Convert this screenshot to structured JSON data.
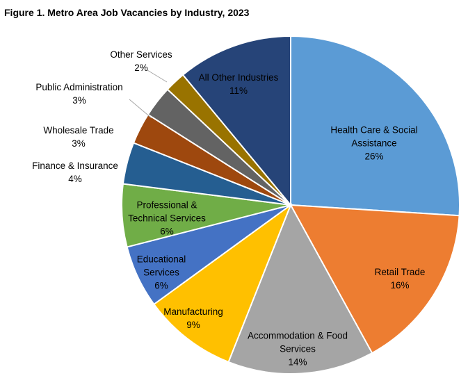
{
  "chart_data": {
    "type": "pie",
    "title": "Figure 1. Metro Area Job Vacancies by Industry, 2023",
    "start": "12 o'clock, clockwise",
    "slices": [
      {
        "label": "Health Care & Social Assistance",
        "lines": [
          "Health Care & Social",
          "Assistance"
        ],
        "value": 26,
        "pct": "26%",
        "color": "#5B9BD5"
      },
      {
        "label": "Retail Trade",
        "lines": [
          "Retail Trade"
        ],
        "value": 16,
        "pct": "16%",
        "color": "#ED7D31"
      },
      {
        "label": "Accommodation & Food Services",
        "lines": [
          "Accommodation & Food",
          "Services"
        ],
        "value": 14,
        "pct": "14%",
        "color": "#A5A5A5"
      },
      {
        "label": "Manufacturing",
        "lines": [
          "Manufacturing"
        ],
        "value": 9,
        "pct": "9%",
        "color": "#FFC000"
      },
      {
        "label": "Educational Services",
        "lines": [
          "Educational",
          "Services"
        ],
        "value": 6,
        "pct": "6%",
        "color": "#4472C4"
      },
      {
        "label": "Professional & Technical Services",
        "lines": [
          "Professional &",
          "Technical Services"
        ],
        "value": 6,
        "pct": "6%",
        "color": "#70AD47"
      },
      {
        "label": "Finance & Insurance",
        "lines": [
          "Finance & Insurance"
        ],
        "value": 4,
        "pct": "4%",
        "color": "#255E91"
      },
      {
        "label": "Wholesale Trade",
        "lines": [
          "Wholesale Trade"
        ],
        "value": 3,
        "pct": "3%",
        "color": "#9E480E"
      },
      {
        "label": "Public Administration",
        "lines": [
          "Public Administration"
        ],
        "value": 3,
        "pct": "3%",
        "color": "#636363"
      },
      {
        "label": "Other Services",
        "lines": [
          "Other Services"
        ],
        "value": 2,
        "pct": "2%",
        "color": "#997300"
      },
      {
        "label": "All Other Industries",
        "lines": [
          "All Other Industries"
        ],
        "value": 11,
        "pct": "11%",
        "color": "#264478"
      }
    ]
  }
}
